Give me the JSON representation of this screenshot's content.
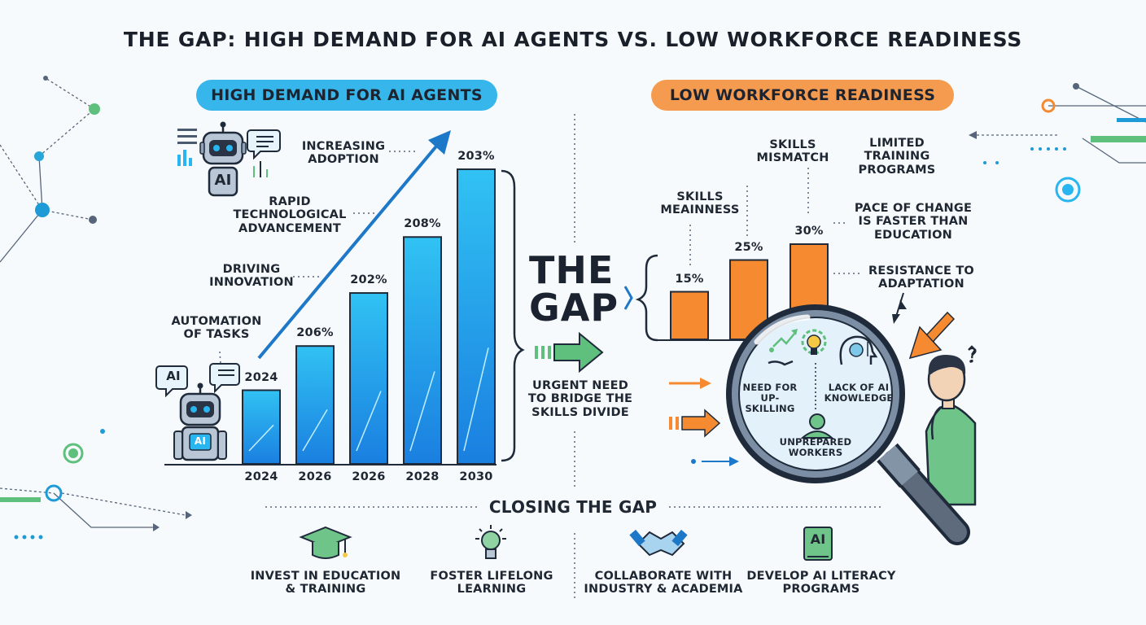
{
  "title": "THE GAP: HIGH DEMAND FOR AI AGENTS VS. LOW WORKFORCE READINESS",
  "colors": {
    "blue": "#29b6f0",
    "blue_dark": "#1e88e5",
    "orange": "#f58a30",
    "green": "#5fbf7d",
    "navy": "#1f2a3a"
  },
  "left_panel": {
    "header": "HIGH DEMAND FOR AI AGENTS",
    "annotations": [
      "INCREASING\nADOPTION",
      "RAPID\nTECHNOLOGICAL\nADVANCEMENT",
      "DRIVING\nINNOVATION",
      "AUTOMATION\nOF TASKS"
    ],
    "robot_badge": "AI",
    "robot_badge_2": "AI",
    "robot_chest": "AI"
  },
  "center": {
    "gap_label": "THE\nGAP",
    "urgent_text": "URGENT NEED\nTO BRIDGE THE\nSKILLS DIVIDE"
  },
  "right_panel": {
    "header": "LOW WORKFORCE READINESS",
    "annotations": [
      "SKILLS\nMEAINNESS",
      "SKILLS\nMISMATCH",
      "LIMITED\nTRAINING\nPROGRAMS",
      "PACE OF CHANGE\nIS FASTER THAN\nEDUCATION",
      "RESISTANCE TO\nADAPTATION"
    ],
    "magnifier_items": [
      "NEED FOR\nUP-SKILLING",
      "LACK OF AI\nKNOWLEDGE",
      "UNPREPARED\nWORKERS"
    ],
    "question_mark": "?"
  },
  "chart_data": [
    {
      "type": "bar",
      "categories": [
        "2024",
        "2026",
        "2026",
        "2028",
        "2030"
      ],
      "values": [
        2024,
        206,
        202,
        208,
        203
      ],
      "data_labels": [
        "2024",
        "206%",
        "202%",
        "208%",
        "203%"
      ],
      "bar_levels": [
        0.25,
        0.4,
        0.58,
        0.77,
        1.0
      ]
    },
    {
      "type": "bar",
      "categories": [
        "",
        "",
        ""
      ],
      "values": [
        15,
        25,
        30
      ],
      "data_labels": [
        "15%",
        "25%",
        "30%"
      ]
    }
  ],
  "closing": {
    "title": "CLOSING THE GAP",
    "items": [
      {
        "icon": "graduation-cap-icon",
        "label": "INVEST IN EDUCATION\n& TRAINING"
      },
      {
        "icon": "lightbulb-icon",
        "label": "FOSTER LIFELONG\nLEARNING"
      },
      {
        "icon": "handshake-icon",
        "label": "COLLABORATE WITH\nINDUSTRY & ACADEMIA"
      },
      {
        "icon": "ai-book-icon",
        "label": "DEVELOP AI LITERACY\nPROGRAMS",
        "badge": "AI"
      }
    ]
  }
}
